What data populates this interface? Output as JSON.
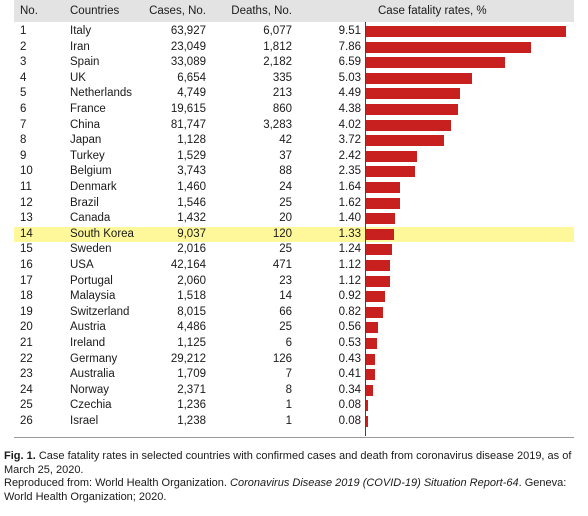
{
  "table": {
    "headers": {
      "no": "No.",
      "country": "Countries",
      "cases": "Cases, No.",
      "deaths": "Deaths, No.",
      "rate": "Case fatality rates, %"
    },
    "highlight_color": "#fff89a",
    "bar_color": "#c8201f"
  },
  "chart_data": {
    "type": "bar",
    "orientation": "horizontal",
    "highlighted_category": "South Korea",
    "columns": [
      "No.",
      "Countries",
      "Cases, No.",
      "Deaths, No.",
      "Case fatality rates, %"
    ],
    "rows": [
      {
        "no": "1",
        "country": "Italy",
        "cases": "63,927",
        "deaths": "6,077",
        "rate": "9.51",
        "value": 9.51
      },
      {
        "no": "2",
        "country": "Iran",
        "cases": "23,049",
        "deaths": "1,812",
        "rate": "7.86",
        "value": 7.86
      },
      {
        "no": "3",
        "country": "Spain",
        "cases": "33,089",
        "deaths": "2,182",
        "rate": "6.59",
        "value": 6.59
      },
      {
        "no": "4",
        "country": "UK",
        "cases": "6,654",
        "deaths": "335",
        "rate": "5.03",
        "value": 5.03
      },
      {
        "no": "5",
        "country": "Netherlands",
        "cases": "4,749",
        "deaths": "213",
        "rate": "4.49",
        "value": 4.49
      },
      {
        "no": "6",
        "country": "France",
        "cases": "19,615",
        "deaths": "860",
        "rate": "4.38",
        "value": 4.38
      },
      {
        "no": "7",
        "country": "China",
        "cases": "81,747",
        "deaths": "3,283",
        "rate": "4.02",
        "value": 4.02
      },
      {
        "no": "8",
        "country": "Japan",
        "cases": "1,128",
        "deaths": "42",
        "rate": "3.72",
        "value": 3.72
      },
      {
        "no": "9",
        "country": "Turkey",
        "cases": "1,529",
        "deaths": "37",
        "rate": "2.42",
        "value": 2.42
      },
      {
        "no": "10",
        "country": "Belgium",
        "cases": "3,743",
        "deaths": "88",
        "rate": "2.35",
        "value": 2.35
      },
      {
        "no": "11",
        "country": "Denmark",
        "cases": "1,460",
        "deaths": "24",
        "rate": "1.64",
        "value": 1.64
      },
      {
        "no": "12",
        "country": "Brazil",
        "cases": "1,546",
        "deaths": "25",
        "rate": "1.62",
        "value": 1.62
      },
      {
        "no": "13",
        "country": "Canada",
        "cases": "1,432",
        "deaths": "20",
        "rate": "1.40",
        "value": 1.4
      },
      {
        "no": "14",
        "country": "South Korea",
        "cases": "9,037",
        "deaths": "120",
        "rate": "1.33",
        "value": 1.33
      },
      {
        "no": "15",
        "country": "Sweden",
        "cases": "2,016",
        "deaths": "25",
        "rate": "1.24",
        "value": 1.24
      },
      {
        "no": "16",
        "country": "USA",
        "cases": "42,164",
        "deaths": "471",
        "rate": "1.12",
        "value": 1.12
      },
      {
        "no": "17",
        "country": "Portugal",
        "cases": "2,060",
        "deaths": "23",
        "rate": "1.12",
        "value": 1.12
      },
      {
        "no": "18",
        "country": "Malaysia",
        "cases": "1,518",
        "deaths": "14",
        "rate": "0.92",
        "value": 0.92
      },
      {
        "no": "19",
        "country": "Switzerland",
        "cases": "8,015",
        "deaths": "66",
        "rate": "0.82",
        "value": 0.82
      },
      {
        "no": "20",
        "country": "Austria",
        "cases": "4,486",
        "deaths": "25",
        "rate": "0.56",
        "value": 0.56
      },
      {
        "no": "21",
        "country": "Ireland",
        "cases": "1,125",
        "deaths": "6",
        "rate": "0.53",
        "value": 0.53
      },
      {
        "no": "22",
        "country": "Germany",
        "cases": "29,212",
        "deaths": "126",
        "rate": "0.43",
        "value": 0.43
      },
      {
        "no": "23",
        "country": "Australia",
        "cases": "1,709",
        "deaths": "7",
        "rate": "0.41",
        "value": 0.41
      },
      {
        "no": "24",
        "country": "Norway",
        "cases": "2,371",
        "deaths": "8",
        "rate": "0.34",
        "value": 0.34
      },
      {
        "no": "25",
        "country": "Czechia",
        "cases": "1,236",
        "deaths": "1",
        "rate": "0.08",
        "value": 0.08
      },
      {
        "no": "26",
        "country": "Israel",
        "cases": "1,238",
        "deaths": "1",
        "rate": "0.08",
        "value": 0.08
      }
    ]
  },
  "caption": {
    "label": "Fig. 1.",
    "text": " Case fatality rates in selected countries with confirmed cases and death from coronavirus disease 2019, as of March 25, 2020.",
    "source_prefix": "Reproduced from: World Health Organization. ",
    "source_title": "Coronavirus Disease 2019 (COVID-19) Situation Report-64",
    "source_suffix": ". Geneva: World Health Organization; 2020."
  }
}
